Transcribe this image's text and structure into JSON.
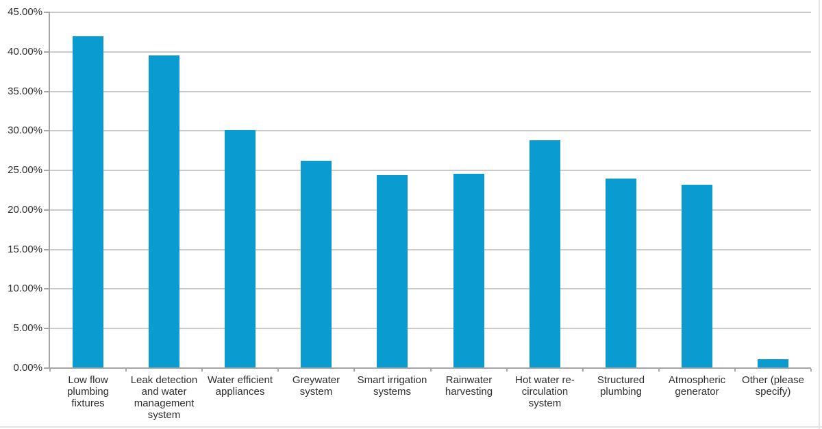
{
  "chart_data": {
    "type": "bar",
    "title": "",
    "xlabel": "",
    "ylabel": "",
    "categories": [
      "Low flow plumbing fixtures",
      "Leak detection and water management system",
      "Water efficient appliances",
      "Greywater system",
      "Smart irrigation systems",
      "Rainwater harvesting",
      "Hot water re-circulation system",
      "Structured plumbing",
      "Atmospheric generator",
      "Other (please specify)"
    ],
    "values": [
      41.9,
      39.5,
      30.0,
      26.1,
      24.3,
      24.5,
      28.7,
      23.9,
      23.1,
      1.0
    ],
    "ylim": [
      0,
      45
    ],
    "ytick_step": 5,
    "ytick_labels": [
      "0.00%",
      "5.00%",
      "10.00%",
      "15.00%",
      "20.00%",
      "25.00%",
      "30.00%",
      "35.00%",
      "40.00%",
      "45.00%"
    ],
    "grid": true,
    "legend": "none",
    "colors": {
      "bar": "#0a9bd1",
      "gridline": "#cacaca",
      "axis": "#a5a5a5",
      "text": "#2d2d2d",
      "page_edge": "#e3e3e3"
    }
  }
}
